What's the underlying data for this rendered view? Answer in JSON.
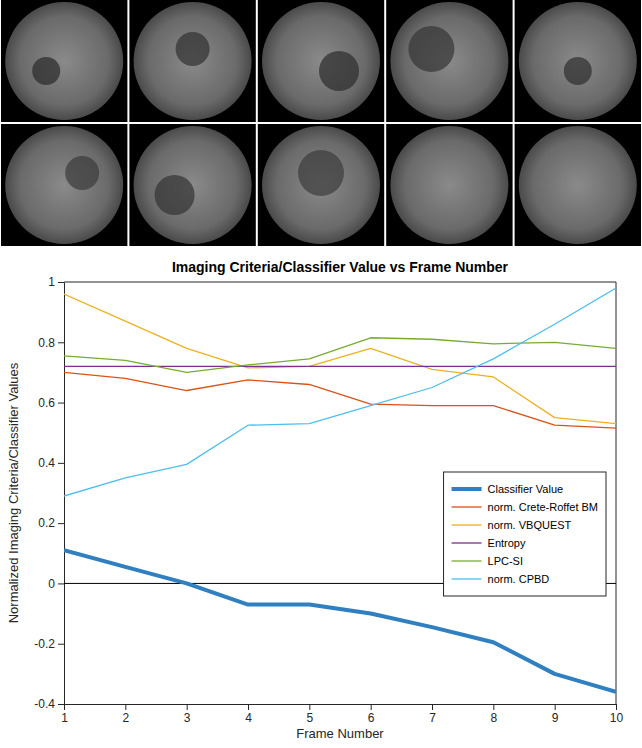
{
  "chart_data": {
    "type": "line",
    "title": "Imaging Criteria/Classifier Value vs Frame Number",
    "x_label": "Frame Number",
    "y_label": "Normalized Imaging Criteria/Classifier Values",
    "x": [
      1,
      2,
      3,
      4,
      5,
      6,
      7,
      8,
      9,
      10
    ],
    "xlim": [
      1,
      10
    ],
    "xticks": [
      1,
      2,
      3,
      4,
      5,
      6,
      7,
      8,
      9,
      10
    ],
    "ylim": [
      -0.4,
      1
    ],
    "yticks": [
      -0.4,
      -0.2,
      0,
      0.2,
      0.4,
      0.6,
      0.8,
      1
    ],
    "legend": "right",
    "series": [
      {
        "name": "Classifier Value",
        "color": "#2f7fc1",
        "values": [
          0.11,
          0.055,
          0.0,
          -0.07,
          -0.07,
          -0.1,
          -0.145,
          -0.195,
          -0.3,
          -0.36
        ]
      },
      {
        "name": "norm. Crete-Roffet BM",
        "color": "#d95319",
        "values": [
          0.7,
          0.68,
          0.64,
          0.675,
          0.66,
          0.595,
          0.59,
          0.59,
          0.525,
          0.515
        ]
      },
      {
        "name": "norm. VBQUEST",
        "color": "#edb120",
        "values": [
          0.96,
          0.87,
          0.78,
          0.715,
          0.72,
          0.78,
          0.71,
          0.685,
          0.55,
          0.53
        ]
      },
      {
        "name": "Entropy",
        "color": "#7e2f8e",
        "values": [
          0.72,
          0.72,
          0.72,
          0.72,
          0.72,
          0.72,
          0.72,
          0.72,
          0.72,
          0.72
        ]
      },
      {
        "name": "LPC-SI",
        "color": "#77ac30",
        "values": [
          0.755,
          0.74,
          0.7,
          0.725,
          0.745,
          0.815,
          0.81,
          0.795,
          0.8,
          0.78
        ]
      },
      {
        "name": "norm. CPBD",
        "color": "#4dbeee",
        "values": [
          0.29,
          0.35,
          0.395,
          0.525,
          0.53,
          0.59,
          0.65,
          0.745,
          0.86,
          0.98
        ]
      }
    ]
  }
}
